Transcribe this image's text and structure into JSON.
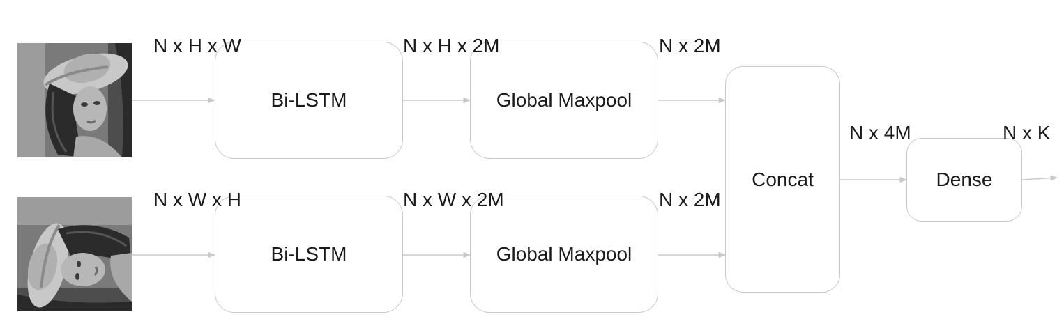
{
  "colors": {
    "wire": "#c9c9c9",
    "box_border": "#c9c9c9",
    "text": "#1a1a1a"
  },
  "images": {
    "top": "grayscale-portrait-image",
    "bottom": "grayscale-portrait-image-transposed"
  },
  "top_branch": {
    "input_shape": "N x H x W",
    "lstm_label": "Bi-LSTM",
    "lstm_out_shape": "N x H x 2M",
    "pool_label": "Global Maxpool",
    "pool_out_shape": "N x 2M"
  },
  "bottom_branch": {
    "input_shape": "N x W x H",
    "lstm_label": "Bi-LSTM",
    "lstm_out_shape": "N x W x 2M",
    "pool_label": "Global Maxpool",
    "pool_out_shape": "N x 2M"
  },
  "concat": {
    "label": "Concat",
    "out_shape": "N x 4M"
  },
  "dense": {
    "label": "Dense",
    "out_shape": "N x K"
  }
}
